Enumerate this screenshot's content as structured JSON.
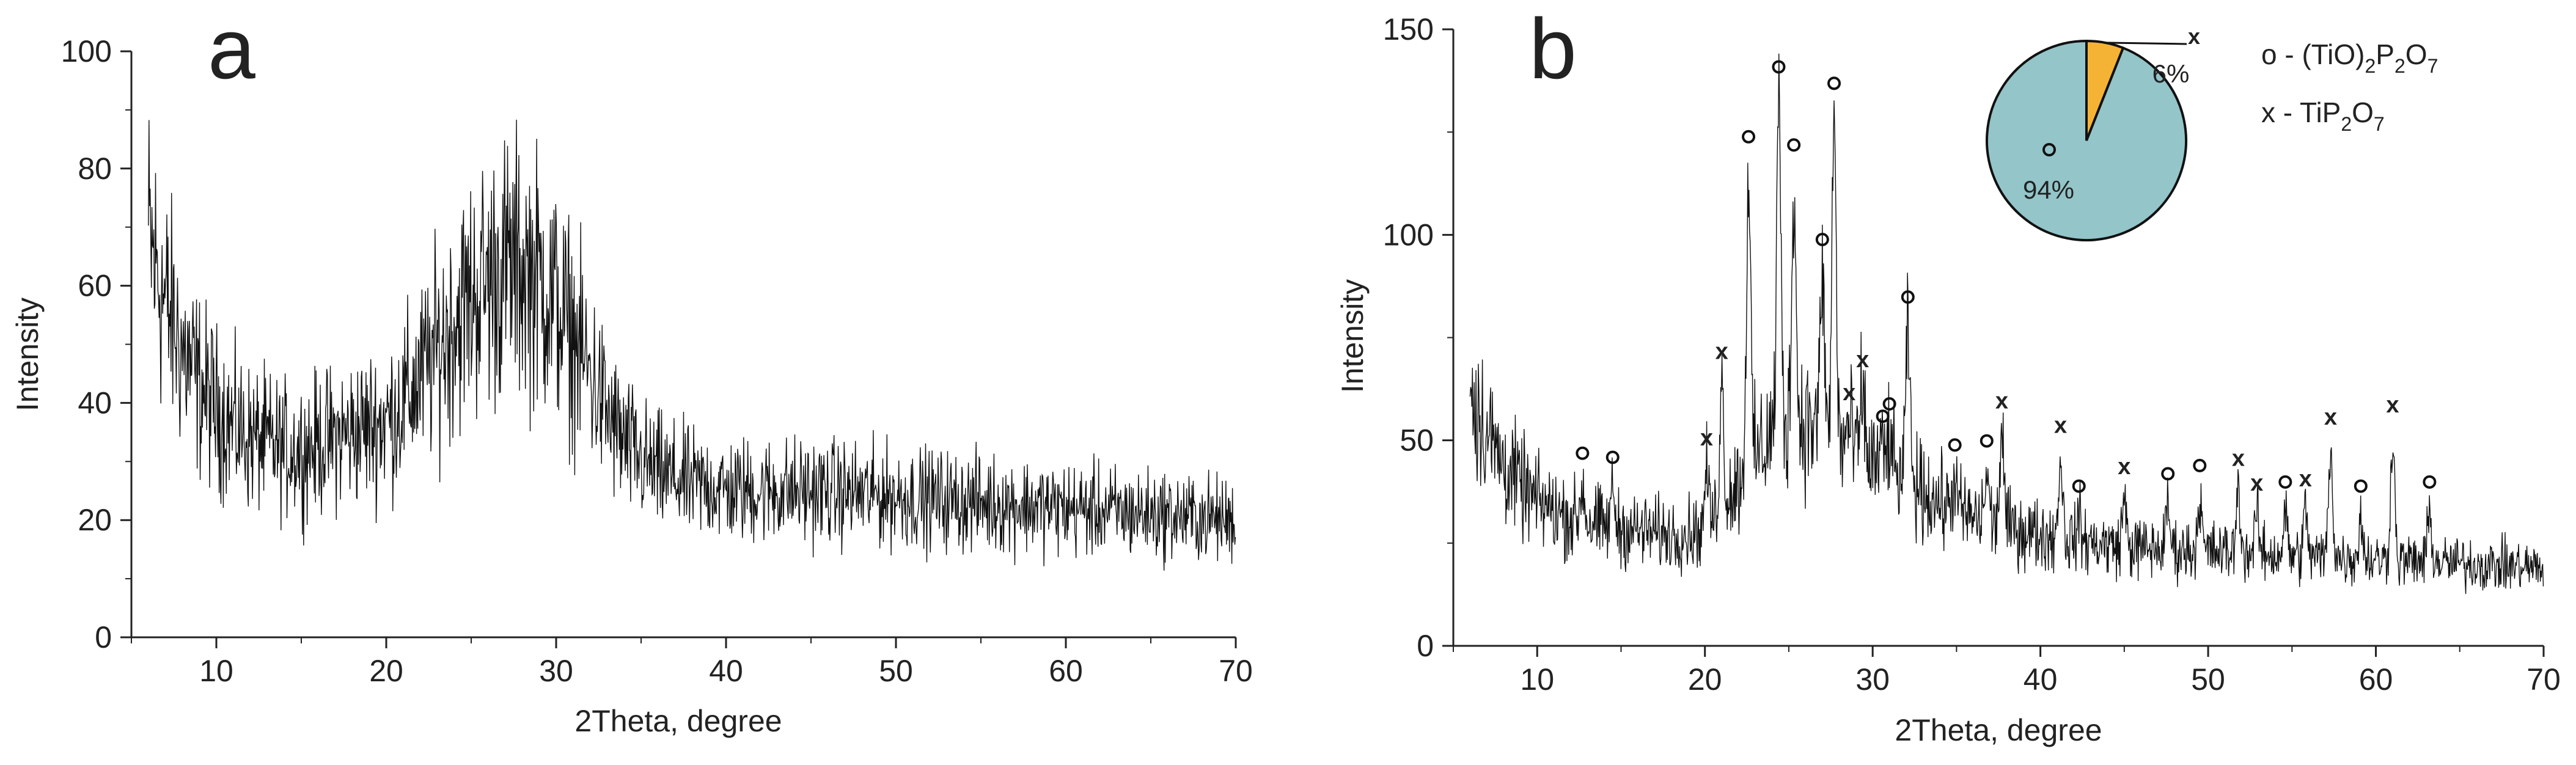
{
  "chart_data": [
    {
      "type": "line",
      "panel_label": "a",
      "xlabel": "2Theta, degree",
      "ylabel": "Intensity",
      "xlim": [
        5,
        70
      ],
      "ylim": [
        0,
        100
      ],
      "xticks": [
        10,
        20,
        30,
        40,
        50,
        60,
        70
      ],
      "yticks": [
        0,
        20,
        40,
        60,
        80,
        100
      ],
      "grid": false,
      "x": [
        6,
        7,
        8,
        9,
        10,
        11,
        12,
        13,
        14,
        15,
        16,
        17,
        18,
        19,
        20,
        21,
        22,
        23,
        24,
        25,
        26,
        27,
        28,
        29,
        30,
        31,
        32,
        33,
        34,
        35,
        36,
        37,
        38,
        39,
        40,
        42,
        45,
        50,
        55,
        60,
        65,
        70
      ],
      "y": [
        68,
        57,
        49,
        43,
        39,
        36,
        34,
        33,
        32,
        32,
        33,
        34,
        35,
        36,
        37,
        40,
        44,
        49,
        54,
        58,
        61,
        63,
        63,
        61,
        57,
        51,
        45,
        38,
        33,
        30,
        28,
        27,
        26,
        26,
        25,
        25,
        25,
        24,
        23,
        22,
        21,
        20
      ]
    },
    {
      "type": "line",
      "panel_label": "b",
      "xlabel": "2Theta, degree",
      "ylabel": "Intensity",
      "xlim": [
        5,
        70
      ],
      "ylim": [
        0,
        150
      ],
      "xticks": [
        10,
        20,
        30,
        40,
        50,
        60,
        70
      ],
      "yticks": [
        0,
        50,
        100,
        150
      ],
      "grid": false,
      "baseline": {
        "x": [
          6,
          7,
          8,
          9,
          10,
          12,
          14,
          16,
          18,
          20,
          22,
          24,
          26,
          28,
          30,
          32,
          34,
          36,
          38,
          40,
          45,
          50,
          55,
          60,
          65,
          70
        ],
        "y": [
          62,
          52,
          44,
          39,
          35,
          31,
          29,
          28,
          27,
          28,
          40,
          52,
          55,
          50,
          45,
          40,
          35,
          31,
          29,
          27,
          24,
          23,
          22,
          21,
          20,
          19
        ]
      },
      "peaks": [
        {
          "x": 12.7,
          "y": 43,
          "marker": "o"
        },
        {
          "x": 14.5,
          "y": 42,
          "marker": "o"
        },
        {
          "x": 20.1,
          "y": 47,
          "marker": "x"
        },
        {
          "x": 21.0,
          "y": 68,
          "marker": "x"
        },
        {
          "x": 22.6,
          "y": 120,
          "marker": "o"
        },
        {
          "x": 24.4,
          "y": 137,
          "marker": "o"
        },
        {
          "x": 25.3,
          "y": 118,
          "marker": "o"
        },
        {
          "x": 27.0,
          "y": 95,
          "marker": "o"
        },
        {
          "x": 27.7,
          "y": 133,
          "marker": "o"
        },
        {
          "x": 28.6,
          "y": 58,
          "marker": "x"
        },
        {
          "x": 29.4,
          "y": 66,
          "marker": "x"
        },
        {
          "x": 30.6,
          "y": 52,
          "marker": "o"
        },
        {
          "x": 31.0,
          "y": 55,
          "marker": "o"
        },
        {
          "x": 32.1,
          "y": 81,
          "marker": "o"
        },
        {
          "x": 34.9,
          "y": 45,
          "marker": "o"
        },
        {
          "x": 36.8,
          "y": 46,
          "marker": "o"
        },
        {
          "x": 37.7,
          "y": 56,
          "marker": "x"
        },
        {
          "x": 41.2,
          "y": 50,
          "marker": "x"
        },
        {
          "x": 42.3,
          "y": 35,
          "marker": "o"
        },
        {
          "x": 45.0,
          "y": 40,
          "marker": "x"
        },
        {
          "x": 47.6,
          "y": 38,
          "marker": "o"
        },
        {
          "x": 49.5,
          "y": 40,
          "marker": "o"
        },
        {
          "x": 51.8,
          "y": 42,
          "marker": "x"
        },
        {
          "x": 52.9,
          "y": 36,
          "marker": "x"
        },
        {
          "x": 54.6,
          "y": 36,
          "marker": "o"
        },
        {
          "x": 55.8,
          "y": 37,
          "marker": "x"
        },
        {
          "x": 57.3,
          "y": 52,
          "marker": "x"
        },
        {
          "x": 59.1,
          "y": 35,
          "marker": "o"
        },
        {
          "x": 61.0,
          "y": 55,
          "marker": "x"
        },
        {
          "x": 63.2,
          "y": 36,
          "marker": "o"
        }
      ],
      "legend": [
        {
          "marker": "o",
          "text": "o - (TiO)2P2O7"
        },
        {
          "marker": "x",
          "text": "x - TiP2O7"
        }
      ],
      "legend_position": "top-right",
      "inset": {
        "type": "pie",
        "slices": [
          {
            "marker": "o",
            "value": 94,
            "label": "94%",
            "color": "#93c5c9"
          },
          {
            "marker": "x",
            "value": 6,
            "label": "6%",
            "color": "#f5b335"
          }
        ]
      }
    }
  ],
  "colors": {
    "trace": "#111111",
    "axis": "#222222",
    "pie_main": "#93c5c9",
    "pie_minor": "#f5b335"
  }
}
